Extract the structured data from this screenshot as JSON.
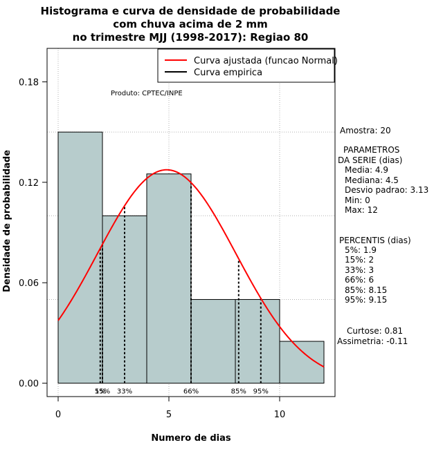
{
  "chart_data": {
    "type": "bar",
    "title": [
      "Histograma e curva de densidade de probabilidade",
      "com chuva acima de 2 mm",
      "no trimestre MJJ (1998-2017): Regiao 80"
    ],
    "xlabel": "Numero de dias",
    "ylabel": "Densidade de probabilidade",
    "xlim": [
      -0.5,
      12.5
    ],
    "ylim": [
      -0.008,
      0.2
    ],
    "xticks": [
      0,
      5,
      10
    ],
    "xtick_labels": [
      "0",
      "5",
      "10"
    ],
    "yticks": [
      0,
      0.06,
      0.12,
      0.18
    ],
    "ytick_labels": [
      "0.00",
      "0.06",
      "0.12",
      "0.18"
    ],
    "grid": true,
    "grid_x": [
      0,
      5,
      10
    ],
    "grid_y": [
      0.05,
      0.1,
      0.15
    ],
    "bars": [
      {
        "x0": 0,
        "x1": 2,
        "value": 0.15
      },
      {
        "x0": 2,
        "x1": 4,
        "value": 0.1
      },
      {
        "x0": 4,
        "x1": 6,
        "value": 0.125
      },
      {
        "x0": 6,
        "x1": 8,
        "value": 0.05
      },
      {
        "x0": 8,
        "x1": 10,
        "value": 0.05
      },
      {
        "x0": 10,
        "x1": 12,
        "value": 0.025
      }
    ],
    "bar_color": "#b7cccc",
    "curve": {
      "name": "Curva ajustada (funcao Normal)",
      "mean": 4.9,
      "sd": 3.13,
      "x_range": [
        0,
        12
      ],
      "color": "#ff0000"
    },
    "empirical_legend": {
      "name": "Curva empirica",
      "color": "#000000"
    },
    "percentiles": [
      {
        "label": "5%",
        "x": 1.9
      },
      {
        "label": "15%",
        "x": 2
      },
      {
        "label": "33%",
        "x": 3
      },
      {
        "label": "66%",
        "x": 6
      },
      {
        "label": "85%",
        "x": 8.15
      },
      {
        "label": "95%",
        "x": 9.15
      }
    ],
    "percentile_axis_labels": [
      {
        "text": "5%",
        "x": 1.9
      },
      {
        "text": "15%",
        "x": 2
      },
      {
        "text": "33%",
        "x": 3
      },
      {
        "text": "66%",
        "x": 6
      },
      {
        "text": "85%",
        "x": 8.15
      },
      {
        "text": "95%",
        "x": 9.15
      }
    ],
    "legend_position": "top-right",
    "annotation_product": "Produto: CPTEC/INPE",
    "side_panel": {
      "amostra": "Amostra: 20",
      "param_title_1": "PARAMETROS",
      "param_title_2": "DA SERIE (dias)",
      "params": [
        "Media: 4.9",
        "Mediana: 4.5",
        "Desvio padrao: 3.13",
        "Min: 0",
        "Max: 12"
      ],
      "percentis_title": "PERCENTIS (dias)",
      "percentis": [
        "5%: 1.9",
        "15%: 2",
        "33%: 3",
        "66%: 6",
        "85%: 8.15",
        "95%: 9.15"
      ],
      "curtose": "Curtose: 0.81",
      "assimetria": "Assimetria: -0.11"
    }
  }
}
